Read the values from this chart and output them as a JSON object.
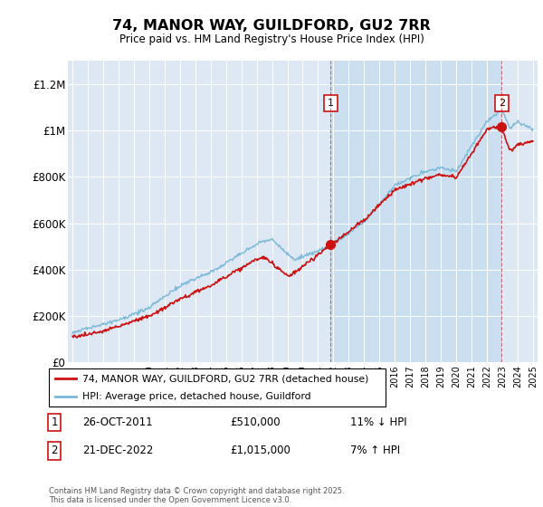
{
  "title": "74, MANOR WAY, GUILDFORD, GU2 7RR",
  "subtitle": "Price paid vs. HM Land Registry's House Price Index (HPI)",
  "ylim": [
    0,
    1300000
  ],
  "yticks": [
    0,
    200000,
    400000,
    600000,
    800000,
    1000000,
    1200000
  ],
  "ytick_labels": [
    "£0",
    "£200K",
    "£400K",
    "£600K",
    "£800K",
    "£1M",
    "£1.2M"
  ],
  "background_color": "#dde8f4",
  "shade_color": "#ccdff0",
  "hpi_color": "#7ab8d8",
  "price_color": "#cc1111",
  "sale1_year": 2011.82,
  "sale1_price": 510000,
  "sale2_year": 2022.97,
  "sale2_price": 1015000,
  "legend_label_price": "74, MANOR WAY, GUILDFORD, GU2 7RR (detached house)",
  "legend_label_hpi": "HPI: Average price, detached house, Guildford",
  "copyright": "Contains HM Land Registry data © Crown copyright and database right 2025.\nThis data is licensed under the Open Government Licence v3.0."
}
